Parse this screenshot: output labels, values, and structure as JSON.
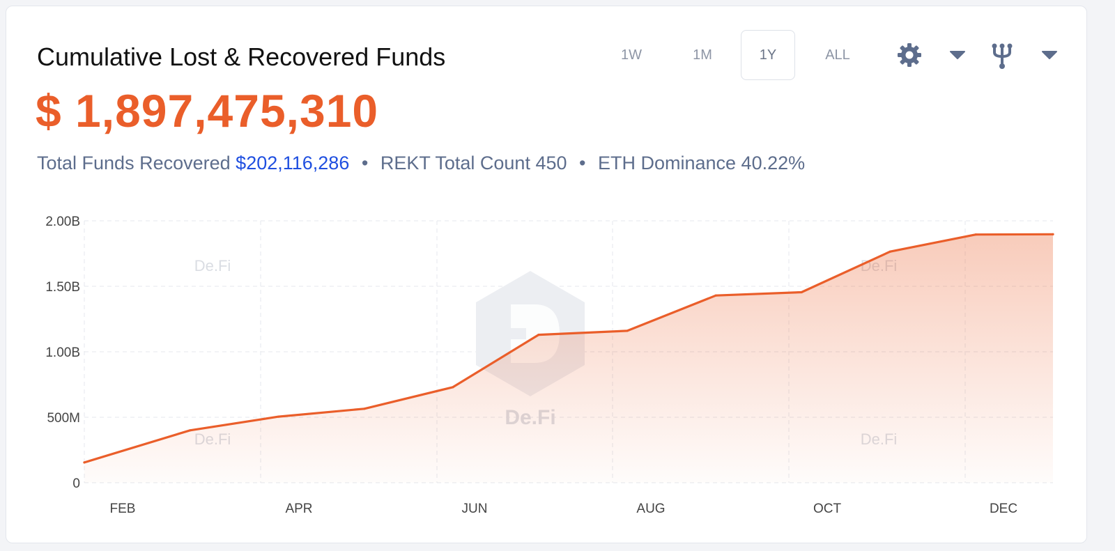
{
  "header": {
    "title": "Cumulative Lost & Recovered Funds",
    "total_value": "$ 1,897,475,310"
  },
  "stats": {
    "recovered_label": "Total Funds Recovered",
    "recovered_value": "$202,116,286",
    "separator": "•",
    "rekt_label": "REKT Total Count 450",
    "eth_label": "ETH Dominance 40.22%"
  },
  "ranges": [
    {
      "label": "1W",
      "active": false
    },
    {
      "label": "1M",
      "active": false
    },
    {
      "label": "1Y",
      "active": true
    },
    {
      "label": "ALL",
      "active": false
    }
  ],
  "toolbar": {
    "settings_icon": "gear-icon",
    "settings_dropdown_icon": "caret-down-icon",
    "fork_icon": "fork-icon",
    "fork_dropdown_icon": "caret-down-icon",
    "icon_color": "#5d6d8c"
  },
  "watermark": "De.Fi",
  "colors": {
    "accent": "#ea5e2a",
    "link": "#1f4fe0",
    "muted": "#5d6d8c"
  },
  "chart_data": {
    "type": "area",
    "x_ticks": [
      "FEB",
      "APR",
      "JUN",
      "AUG",
      "OCT",
      "DEC"
    ],
    "y_ticks": [
      "0",
      "500M",
      "1.00B",
      "1.50B",
      "2.00B"
    ],
    "y_tick_values": [
      0,
      500000000,
      1000000000,
      1500000000,
      2000000000
    ],
    "ylim": [
      0,
      2000000000
    ],
    "x_domain": [
      "2022-01-22",
      "2022-12-27"
    ],
    "grid": true,
    "series": [
      {
        "points": [
          {
            "x": "2022-01-22",
            "y": 155000000
          },
          {
            "x": "2022-02-28",
            "y": 400000000
          },
          {
            "x": "2022-03-31",
            "y": 505000000
          },
          {
            "x": "2022-04-30",
            "y": 565000000
          },
          {
            "x": "2022-05-31",
            "y": 730000000
          },
          {
            "x": "2022-06-30",
            "y": 1130000000
          },
          {
            "x": "2022-07-31",
            "y": 1160000000
          },
          {
            "x": "2022-08-31",
            "y": 1430000000
          },
          {
            "x": "2022-09-30",
            "y": 1455000000
          },
          {
            "x": "2022-10-31",
            "y": 1765000000
          },
          {
            "x": "2022-11-30",
            "y": 1895000000
          },
          {
            "x": "2022-12-27",
            "y": 1897475310
          }
        ]
      }
    ]
  }
}
